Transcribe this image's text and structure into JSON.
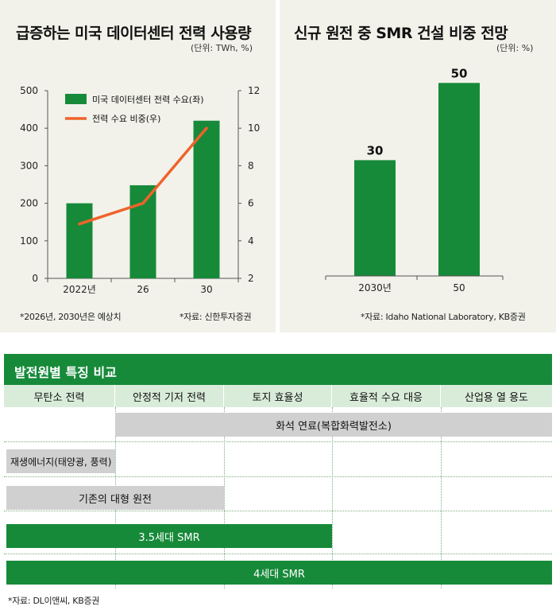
{
  "left_chart": {
    "title": "급증하는 미국 데이터센터 전력 사용량",
    "unit": "(단위: TWh, %)",
    "note_left": "*2026년, 2030년은 예상치",
    "note_right": "*자료: 신한투자증권",
    "left_ticks": [
      "0",
      "100",
      "200",
      "300",
      "400",
      "500"
    ],
    "right_ticks": [
      "2",
      "4",
      "6",
      "8",
      "10",
      "12"
    ],
    "legend_bar": "미국 데이터센터 전력 수요(좌)",
    "legend_line": "전력 수요 비중(우)",
    "colors": {
      "bar": "#178a3a",
      "line": "#f0622a"
    }
  },
  "right_chart": {
    "title": "신규 원전 중 SMR 건설 비중 전망",
    "unit": "(단위: %)",
    "note": "*자료: Idaho National Laboratory, KB증권",
    "colors": {
      "bar": "#178a3a"
    }
  },
  "chart_data": [
    {
      "type": "bar",
      "title": "급증하는 미국 데이터센터 전력 사용량",
      "categories": [
        "2022년",
        "26",
        "30"
      ],
      "series": [
        {
          "name": "미국 데이터센터 전력 수요(좌)",
          "type": "bar",
          "axis": "left",
          "values": [
            200,
            248,
            420
          ]
        },
        {
          "name": "전력 수요 비중(우)",
          "type": "line",
          "axis": "right",
          "values": [
            4.9,
            6.0,
            10.0
          ]
        }
      ],
      "ylim": [
        0,
        500
      ],
      "y2lim": [
        2,
        12
      ]
    },
    {
      "type": "bar",
      "title": "신규 원전 중 SMR 건설 비중 전망",
      "categories": [
        "2030년",
        "50"
      ],
      "values": [
        30,
        50
      ],
      "data_labels": [
        "30",
        "50"
      ],
      "ylim": [
        0,
        55
      ]
    }
  ],
  "table": {
    "title": "발전원별 특징 비교",
    "columns": [
      "무탄소 전력",
      "안정적 기저 전력",
      "토지 효율성",
      "효율적 수요 대응",
      "산업용 열 용도"
    ],
    "rows": [
      {
        "label": "화석 연료(복합화력발전소)",
        "style": "gray",
        "start_col": 2,
        "end_col": 5
      },
      {
        "label": "재생에너지(태양광, 풍력)",
        "style": "gray",
        "start_col": 1,
        "end_col": 1
      },
      {
        "label": "기존의 대형 원전",
        "style": "gray",
        "start_col": 1,
        "end_col": 2
      },
      {
        "label": "3.5세대 SMR",
        "style": "green",
        "start_col": 1,
        "end_col": 3
      },
      {
        "label": "4세대 SMR",
        "style": "green",
        "start_col": 1,
        "end_col": 5
      }
    ],
    "note": "*자료: DL이앤씨, KB증권"
  }
}
